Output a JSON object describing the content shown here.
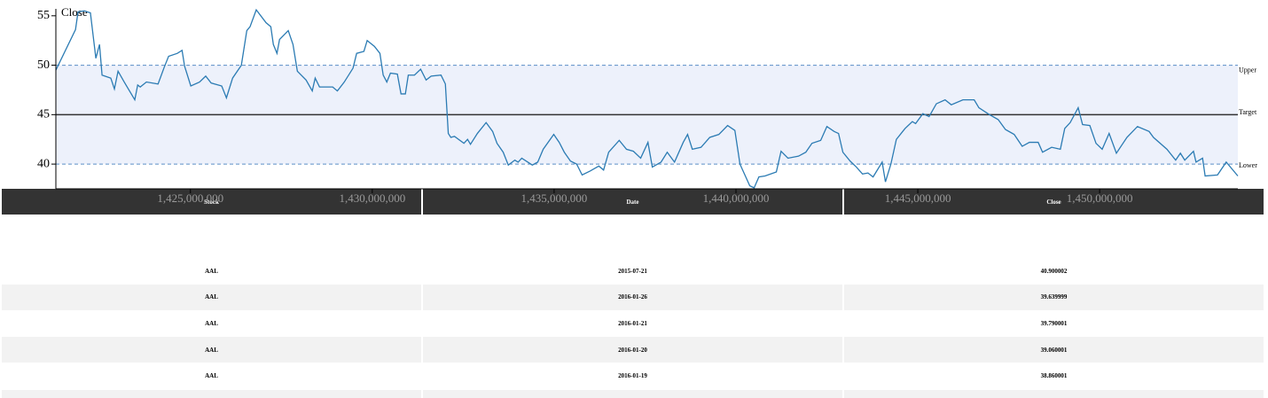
{
  "chart_data": {
    "type": "line",
    "ylabel": "Close",
    "x": [
      1421300000,
      1421840000,
      1421910000,
      1422080000,
      1422250000,
      1422400000,
      1422500000,
      1422570000,
      1422810000,
      1422910000,
      1423010000,
      1423180000,
      1423470000,
      1423550000,
      1423620000,
      1423790000,
      1424110000,
      1424280000,
      1424400000,
      1424640000,
      1424770000,
      1424840000,
      1425010000,
      1425250000,
      1425420000,
      1425570000,
      1425860000,
      1425990000,
      1426160000,
      1426400000,
      1426550000,
      1426640000,
      1426810000,
      1427080000,
      1427210000,
      1427280000,
      1427380000,
      1427450000,
      1427690000,
      1427820000,
      1427940000,
      1428180000,
      1428350000,
      1428430000,
      1428550000,
      1428910000,
      1429040000,
      1429230000,
      1429470000,
      1429570000,
      1429770000,
      1429860000,
      1430060000,
      1430210000,
      1430300000,
      1430400000,
      1430500000,
      1430690000,
      1430790000,
      1430910000,
      1430990000,
      1431160000,
      1431330000,
      1431480000,
      1431620000,
      1431890000,
      1432010000,
      1432090000,
      1432160000,
      1432260000,
      1432520000,
      1432620000,
      1432700000,
      1432890000,
      1433130000,
      1433310000,
      1433430000,
      1433600000,
      1433740000,
      1433920000,
      1434010000,
      1434110000,
      1434400000,
      1434550000,
      1434700000,
      1434990000,
      1435140000,
      1435280000,
      1435450000,
      1435620000,
      1435770000,
      1435990000,
      1436230000,
      1436360000,
      1436500000,
      1436790000,
      1436990000,
      1437180000,
      1437380000,
      1437580000,
      1437700000,
      1437940000,
      1438110000,
      1438310000,
      1438550000,
      1438670000,
      1438800000,
      1439040000,
      1439280000,
      1439530000,
      1439770000,
      1439970000,
      1440110000,
      1440380000,
      1440500000,
      1440630000,
      1440800000,
      1441110000,
      1441240000,
      1441430000,
      1441720000,
      1441920000,
      1442090000,
      1442330000,
      1442500000,
      1442700000,
      1442820000,
      1442940000,
      1443140000,
      1443310000,
      1443480000,
      1443630000,
      1443770000,
      1444020000,
      1444110000,
      1444260000,
      1444410000,
      1444650000,
      1444850000,
      1444940000,
      1445140000,
      1445310000,
      1445510000,
      1445750000,
      1445920000,
      1446240000,
      1446550000,
      1446680000,
      1446970000,
      1447210000,
      1447410000,
      1447650000,
      1447870000,
      1448070000,
      1448310000,
      1448430000,
      1448680000,
      1448920000,
      1449040000,
      1449190000,
      1449410000,
      1449530000,
      1449730000,
      1449900000,
      1450070000,
      1450260000,
      1450460000,
      1450750000,
      1451040000,
      1451360000,
      1451480000,
      1451850000,
      1452090000,
      1452220000,
      1452340000,
      1452580000,
      1452650000,
      1452830000,
      1452900000,
      1453240000,
      1453480000,
      1453800000
    ],
    "values": [
      49.5,
      53.6,
      55.4,
      55.5,
      55.3,
      50.7,
      52.1,
      49.0,
      48.7,
      47.6,
      49.4,
      48.3,
      46.5,
      48.0,
      47.8,
      48.3,
      48.1,
      49.8,
      50.9,
      51.2,
      51.5,
      49.9,
      47.9,
      48.3,
      48.9,
      48.2,
      47.9,
      46.7,
      48.7,
      50.0,
      53.5,
      53.9,
      55.6,
      54.3,
      53.9,
      52.1,
      51.2,
      52.6,
      53.5,
      52.1,
      49.4,
      48.5,
      47.4,
      48.7,
      47.8,
      47.8,
      47.4,
      48.3,
      49.7,
      51.2,
      51.4,
      52.5,
      51.9,
      51.2,
      49.0,
      48.3,
      49.2,
      49.1,
      47.1,
      47.1,
      49.0,
      49.0,
      49.6,
      48.5,
      48.9,
      49.0,
      48.1,
      43.1,
      42.7,
      42.8,
      42.1,
      42.5,
      42.0,
      43.1,
      44.2,
      43.3,
      42.1,
      41.2,
      39.9,
      40.4,
      40.2,
      40.6,
      39.9,
      40.2,
      41.5,
      43.0,
      42.2,
      41.2,
      40.3,
      40.0,
      38.9,
      39.3,
      39.8,
      39.4,
      41.2,
      42.4,
      41.5,
      41.3,
      40.6,
      42.2,
      39.7,
      40.2,
      41.2,
      40.2,
      42.2,
      43.0,
      41.5,
      41.7,
      42.7,
      43.0,
      43.9,
      43.4,
      40.0,
      37.8,
      37.6,
      38.7,
      38.8,
      39.2,
      41.3,
      40.6,
      40.8,
      41.2,
      42.1,
      42.4,
      43.8,
      43.3,
      43.1,
      41.2,
      40.3,
      39.7,
      39.0,
      39.1,
      38.7,
      40.2,
      38.2,
      40.0,
      42.5,
      43.6,
      44.3,
      44.1,
      45.1,
      44.8,
      46.1,
      46.5,
      46.0,
      46.5,
      46.5,
      45.7,
      45.0,
      44.5,
      43.5,
      43.0,
      41.8,
      42.2,
      42.2,
      41.2,
      41.7,
      41.5,
      43.6,
      44.2,
      45.7,
      44.0,
      43.9,
      42.1,
      41.5,
      43.1,
      41.1,
      42.7,
      43.8,
      43.3,
      42.7,
      41.5,
      40.4,
      41.1,
      40.4,
      41.3,
      40.2,
      40.6,
      38.8,
      38.9,
      40.2,
      38.8
    ],
    "color": "#2b7bb3",
    "xlim": [
      1421300000,
      1453800000
    ],
    "xticks": [
      {
        "value": 1425000000,
        "label": "1,425,000,000"
      },
      {
        "value": 1430000000,
        "label": "1,430,000,000"
      },
      {
        "value": 1435000000,
        "label": "1,435,000,000"
      },
      {
        "value": 1440000000,
        "label": "1,440,000,000"
      },
      {
        "value": 1445000000,
        "label": "1,445,000,000"
      },
      {
        "value": 1450000000,
        "label": "1,450,000,000"
      }
    ],
    "ylim": [
      37.5,
      55.7
    ],
    "yticks": [
      40,
      45,
      50,
      55
    ],
    "reference_lines": [
      {
        "label": "Upper",
        "value": 50
      },
      {
        "label": "Target",
        "value": 45
      },
      {
        "label": "Lower",
        "value": 40
      }
    ]
  },
  "table": {
    "columns": [
      "Stock",
      "Date",
      "Close"
    ],
    "rows": [
      [
        "AAL",
        "2015-07-21",
        "40.900002"
      ],
      [
        "AAL",
        "2016-01-26",
        "39.639999"
      ],
      [
        "AAL",
        "2016-01-21",
        "39.790001"
      ],
      [
        "AAL",
        "2016-01-20",
        "39.060001"
      ],
      [
        "AAL",
        "2016-01-19",
        "38.860001"
      ]
    ]
  }
}
